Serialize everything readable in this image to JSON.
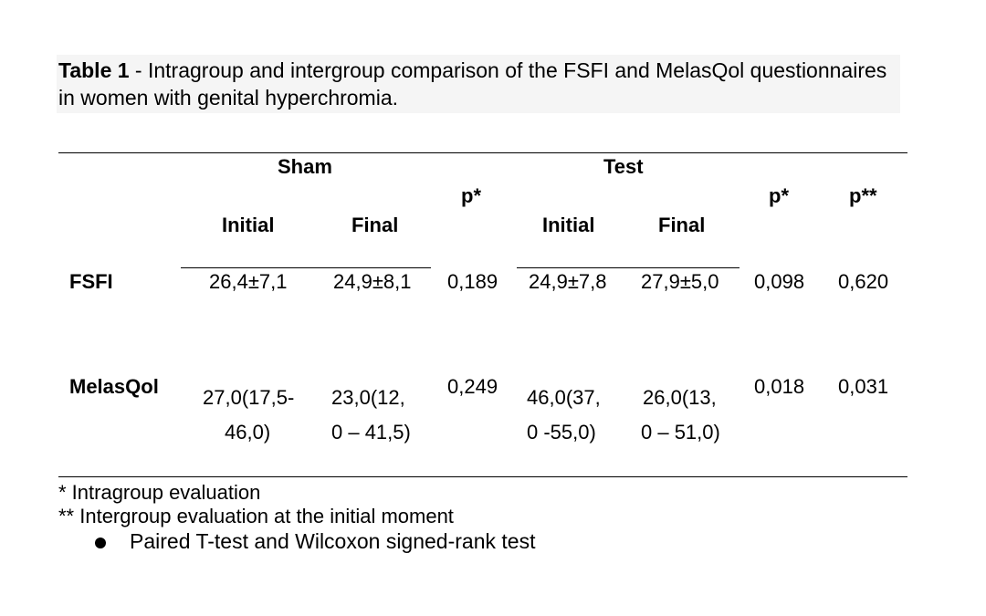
{
  "caption": {
    "label": "Table 1",
    "text": " - Intragroup and intergroup comparison of the FSFI and MelasQol questionnaires in women with genital hyperchromia."
  },
  "table": {
    "groups": {
      "sham": "Sham",
      "test": "Test"
    },
    "headers": {
      "initial_sham": "Initial",
      "final_sham": "Final",
      "p_sham": "p*",
      "initial_test": "Initial",
      "final_test": "Final",
      "p_test": "p*",
      "p_inter": "p**"
    },
    "rows": [
      {
        "label": "FSFI",
        "sham_initial": [
          "26,4±7,1"
        ],
        "sham_final": [
          "24,9±8,1"
        ],
        "p_sham": "0,189",
        "test_initial": [
          "24,9±7,8"
        ],
        "test_final": [
          "27,9±5,0"
        ],
        "p_test": "0,098",
        "p_inter": "0,620"
      },
      {
        "label": "MelasQol",
        "sham_initial": [
          "27,0(17,5-",
          "46,0)"
        ],
        "sham_final": [
          "23,0(12,",
          "0 – 41,5)"
        ],
        "p_sham": "0,249",
        "test_initial": [
          "46,0(37,",
          "0 -55,0)"
        ],
        "test_final": [
          "26,0(13,",
          "0 – 51,0)"
        ],
        "p_test": "0,018",
        "p_inter": "0,031"
      }
    ]
  },
  "footnotes": {
    "intragroup": "* Intragroup evaluation",
    "intergroup": "** Intergroup evaluation at the initial moment",
    "tests": "Paired T-test and Wilcoxon signed-rank test"
  }
}
